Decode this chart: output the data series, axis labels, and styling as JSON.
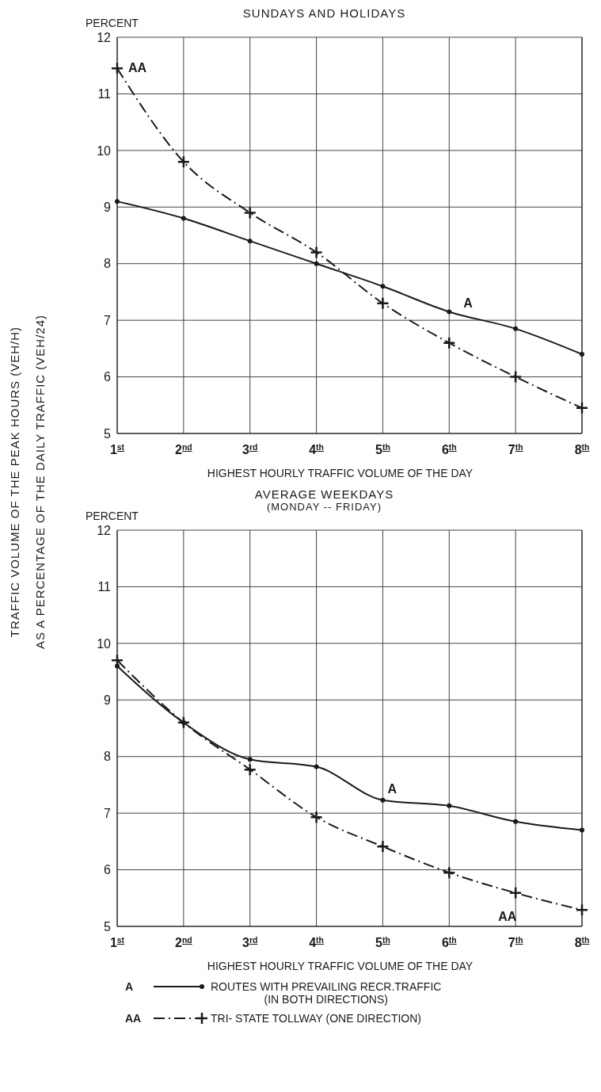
{
  "chart_data": [
    {
      "type": "line",
      "title": "SUNDAYS AND HOLIDAYS",
      "ylabel": "PERCENT",
      "xlabel": "HIGHEST HOURLY TRAFFIC VOLUME OF THE DAY",
      "categories": [
        "1$^{st}$",
        "2$^{nd}$",
        "3$^{rd}$",
        "4$^{th}$",
        "5$^{th}$",
        "6$^{th}$",
        "7$^{th}$",
        "8$^{th}$"
      ],
      "series": [
        {
          "color": "#1a1a1a",
          "marker": "circle",
          "line_style": "solid",
          "values": [
            9.1,
            8.8,
            8.4,
            8.0,
            7.6,
            7.15,
            6.85,
            6.4
          ]
        },
        {
          "color": "#1a1a1a",
          "marker": "cross",
          "line_style": "dashed",
          "values": [
            11.45,
            9.8,
            8.9,
            8.2,
            7.3,
            6.6,
            6.0,
            5.45
          ]
        }
      ],
      "ylim": [
        5,
        12
      ],
      "yticks": [
        5,
        6,
        7,
        8,
        9,
        10,
        11,
        12
      ],
      "grid": true,
      "legend": false,
      "annotations": [
        "TRAFFIC VOLUME OF THE PEAK HOURS  (VEH/H)\nAS A PERCENTAGE OF THE DAILY TRAFFIC (VEH/24)",
        {
          "text": "AA",
          "x": "1$^{st}$",
          "y": 11.45
        },
        {
          "text": "A",
          "x": "6$^{th}$",
          "y": 7.15
        }
      ]
    },
    {
      "type": "line",
      "title": "AVERAGE WEEKDAYS",
      "subtitle": "(MONDAY -- FRIDAY)",
      "ylabel": "PERCENT",
      "xlabel": "HIGHEST HOURLY TRAFFIC VOLUME OF THE DAY",
      "categories": [
        "1$^{st}$",
        "2$^{nd}$",
        "3$^{rd}$",
        "4$^{th}$",
        "5$^{th}$",
        "6$^{th}$",
        "7$^{th}$",
        "8$^{th}$"
      ],
      "series": [
        {
          "name": "A",
          "color": "#1a1a1a",
          "marker": "circle",
          "line_style": "solid",
          "values": [
            9.6,
            8.6,
            7.95,
            7.82,
            7.23,
            7.13,
            6.85,
            6.7
          ]
        },
        {
          "name": "AA",
          "color": "#1a1a1a",
          "marker": "cross",
          "line_style": "dashed",
          "values": [
            9.7,
            8.6,
            7.77,
            6.93,
            6.41,
            5.95,
            5.59,
            5.29
          ]
        }
      ],
      "ylim": [
        5,
        12
      ],
      "yticks": [
        5,
        6,
        7,
        8,
        9,
        10,
        11,
        12
      ],
      "grid": true,
      "legend": "bottom",
      "annotations": [
        "ROUTES WITH PREVAILING RECR.TRAFFIC\n(IN BOTH DIRECTIONS)",
        "TRI- STATE TOLLWAY  (ONE DIRECTION)",
        {
          "text": "A",
          "x": "5$^{th}$",
          "y": 7.23
        },
        {
          "text": "AA",
          "x": "7$^{th}$",
          "y": 5.59
        }
      ]
    }
  ]
}
